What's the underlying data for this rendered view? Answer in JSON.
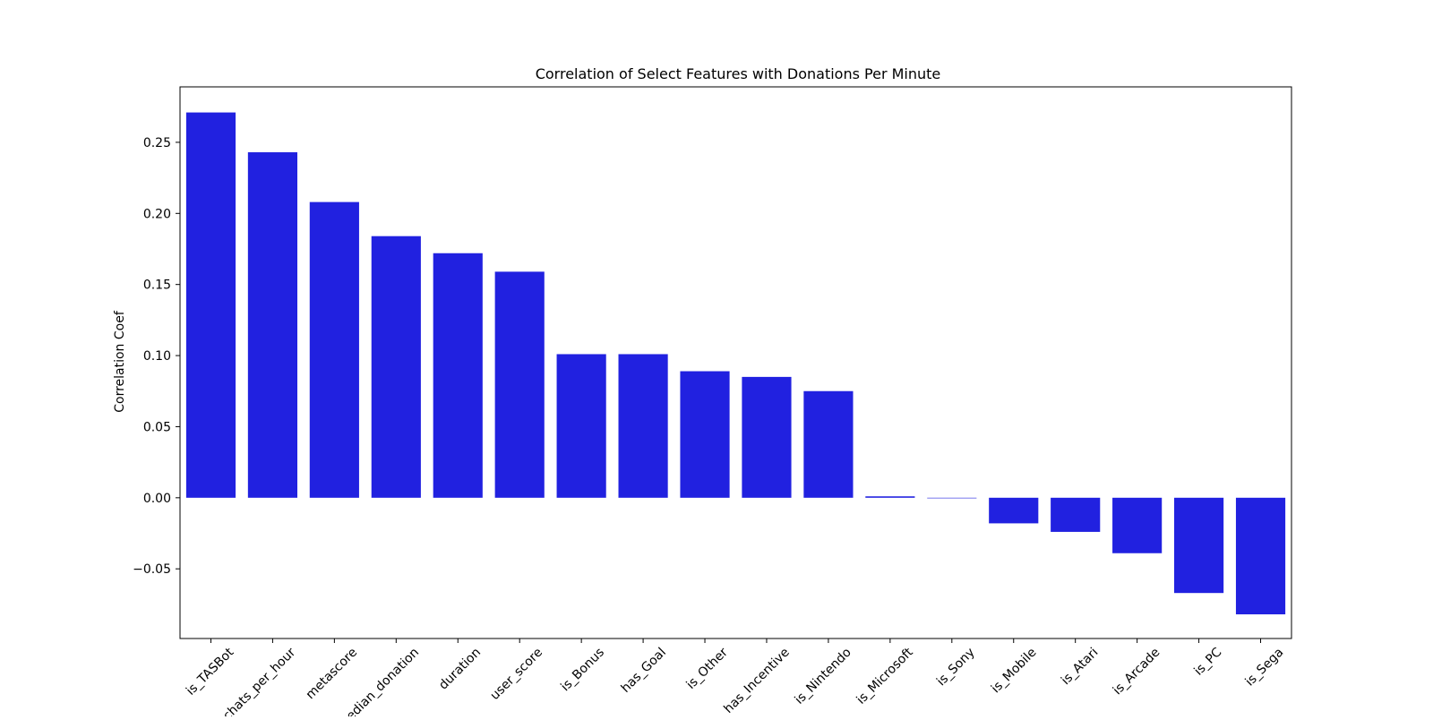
{
  "chart_data": {
    "type": "bar",
    "title": "Correlation of Select Features with Donations Per Minute",
    "xlabel": "",
    "ylabel": "Correlation Coef",
    "categories": [
      "is_TASBot",
      "chats_per_hour",
      "metascore",
      "median_donation",
      "duration",
      "user_score",
      "is_Bonus",
      "has_Goal",
      "is_Other",
      "has_Incentive",
      "is_Nintendo",
      "is_Microsoft",
      "is_Sony",
      "is_Mobile",
      "is_Atari",
      "is_Arcade",
      "is_PC",
      "is_Sega"
    ],
    "values": [
      0.271,
      0.243,
      0.208,
      0.184,
      0.172,
      0.159,
      0.101,
      0.101,
      0.089,
      0.085,
      0.075,
      0.001,
      0.0,
      -0.018,
      -0.024,
      -0.039,
      -0.067,
      -0.082
    ],
    "ylim": [
      -0.099,
      0.289
    ],
    "yticks": [
      -0.05,
      0.0,
      0.05,
      0.1,
      0.15,
      0.2,
      0.25
    ],
    "ytick_labels": [
      "−0.05",
      "0.00",
      "0.05",
      "0.10",
      "0.15",
      "0.20",
      "0.25"
    ],
    "bar_color": "#2121e0",
    "grid": false,
    "legend": "none"
  }
}
